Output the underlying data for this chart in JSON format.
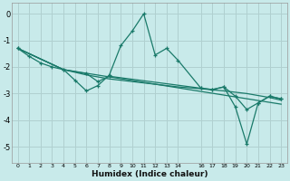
{
  "xlabel": "Humidex (Indice chaleur)",
  "bg_color": "#c8eaea",
  "grid_color": "#b0d0d0",
  "line_color": "#1a7a6a",
  "xlim": [
    -0.5,
    23.5
  ],
  "ylim": [
    -5.6,
    0.4
  ],
  "yticks": [
    0,
    -1,
    -2,
    -3,
    -4,
    -5
  ],
  "xticks": [
    0,
    1,
    2,
    3,
    4,
    5,
    6,
    7,
    8,
    9,
    10,
    11,
    12,
    13,
    14,
    16,
    17,
    18,
    19,
    20,
    21,
    22,
    23
  ],
  "series1": [
    [
      0,
      -1.3
    ],
    [
      1,
      -1.6
    ],
    [
      2,
      -1.85
    ],
    [
      3,
      -2.0
    ],
    [
      4,
      -2.1
    ],
    [
      5,
      -2.5
    ],
    [
      6,
      -2.9
    ],
    [
      7,
      -2.7
    ],
    [
      8,
      -2.3
    ],
    [
      9,
      -1.2
    ],
    [
      10,
      -0.65
    ],
    [
      11,
      0.0
    ],
    [
      12,
      -1.55
    ],
    [
      13,
      -1.3
    ],
    [
      14,
      -1.75
    ],
    [
      16,
      -2.8
    ],
    [
      17,
      -2.85
    ],
    [
      18,
      -2.75
    ],
    [
      19,
      -3.5
    ],
    [
      20,
      -4.9
    ],
    [
      21,
      -3.35
    ],
    [
      22,
      -3.1
    ],
    [
      23,
      -3.2
    ]
  ],
  "series2": [
    [
      0,
      -1.3
    ],
    [
      4,
      -2.1
    ],
    [
      6,
      -2.25
    ],
    [
      7,
      -2.55
    ],
    [
      8,
      -2.35
    ],
    [
      16,
      -2.8
    ],
    [
      17,
      -2.85
    ],
    [
      18,
      -2.75
    ],
    [
      19,
      -3.1
    ],
    [
      20,
      -3.6
    ],
    [
      21,
      -3.35
    ],
    [
      22,
      -3.1
    ],
    [
      23,
      -3.2
    ]
  ],
  "series3": [
    [
      0,
      -1.3
    ],
    [
      4,
      -2.1
    ],
    [
      23,
      -3.4
    ]
  ],
  "series4": [
    [
      0,
      -1.3
    ],
    [
      4,
      -2.1
    ],
    [
      6,
      -2.3
    ],
    [
      8,
      -2.45
    ],
    [
      10,
      -2.55
    ],
    [
      12,
      -2.65
    ],
    [
      14,
      -2.75
    ],
    [
      16,
      -2.82
    ],
    [
      18,
      -2.9
    ],
    [
      20,
      -3.0
    ],
    [
      22,
      -3.15
    ],
    [
      23,
      -3.25
    ]
  ]
}
